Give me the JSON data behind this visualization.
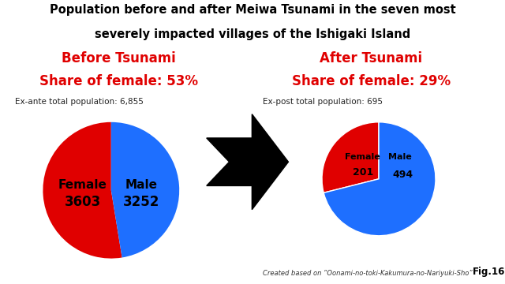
{
  "title_line1": "Population before and after Meiwa Tsunami in the seven most",
  "title_line2": "severely impacted villages of the Ishigaki Island",
  "left_header1": "Before Tsunami",
  "left_header2": "Share of female: 53%",
  "right_header1": "After Tsunami",
  "right_header2": "Share of female: 29%",
  "left_note": "Ex-ante total population: 6,855",
  "right_note": "Ex-post total population: 695",
  "before_female": 3603,
  "before_male": 3252,
  "after_female": 201,
  "after_male": 494,
  "female_color": "#e00000",
  "male_color": "#1e6fff",
  "title_color": "#000000",
  "header_color": "#e00000",
  "footer_note": "Created based on “Oonami-no-toki-Kakumura-no-Nariyuki-Sho”",
  "fig_label": "Fig.16",
  "bg_color": "#ffffff"
}
